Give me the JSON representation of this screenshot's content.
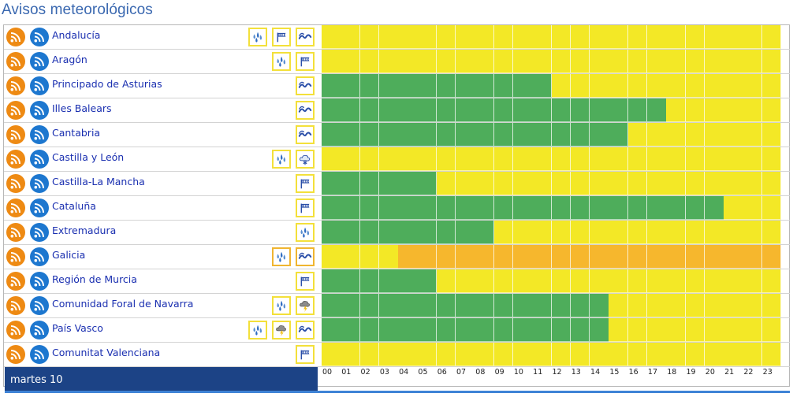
{
  "title": "Avisos meteorológicos",
  "date_label": "martes 10",
  "hours": [
    "00",
    "01",
    "02",
    "03",
    "04",
    "05",
    "06",
    "07",
    "08",
    "09",
    "10",
    "11",
    "12",
    "13",
    "14",
    "15",
    "16",
    "17",
    "18",
    "19",
    "20",
    "21",
    "22",
    "23"
  ],
  "colors": {
    "yellow": "#f3e826",
    "green": "#4ead5b",
    "orange": "#f6b72d",
    "icon_border_yellow": "#f3e03a",
    "icon_border_orange": "#f0b530"
  },
  "regions": [
    {
      "name": "Andalucía",
      "icons": [
        "rain-icon",
        "wind-icon",
        "coastal-icon"
      ],
      "levels": "yyyyyyyyyyyyyyyyyyyyyyyy"
    },
    {
      "name": "Aragón",
      "icons": [
        "rain-icon",
        "wind-icon"
      ],
      "levels": "yyyyyyyyyyyyyyyyyyyyyyyy"
    },
    {
      "name": "Principado de Asturias",
      "icons": [
        "coastal-icon"
      ],
      "levels": "ggggggggggggyyyyyyyyyyyy"
    },
    {
      "name": "Illes Balears",
      "icons": [
        "coastal-icon"
      ],
      "levels": "ggggggggggggggggggyyyyyy"
    },
    {
      "name": "Cantabria",
      "icons": [
        "coastal-icon"
      ],
      "levels": "ggggggggggggggggyyyyyyyy"
    },
    {
      "name": "Castilla y León",
      "icons": [
        "rain-icon",
        "snow-icon"
      ],
      "levels": "yyyyyyyyyyyyyyyyyyyyyyyy"
    },
    {
      "name": "Castilla-La Mancha",
      "icons": [
        "wind-icon"
      ],
      "levels": "ggggggyyyyyyyyyyyyyyyyyy"
    },
    {
      "name": "Cataluña",
      "icons": [
        "wind-icon"
      ],
      "levels": "gggggggggggggggggggggyyy"
    },
    {
      "name": "Extremadura",
      "icons": [
        "rain-icon"
      ],
      "levels": "gggggggggyyyyyyyyyyyyyyy"
    },
    {
      "name": "Galicia",
      "icons": [
        "rain-icon",
        "coastal-icon"
      ],
      "levels": "yyyyoooooooooooooooooooo",
      "orange": true
    },
    {
      "name": "Región de Murcia",
      "icons": [
        "wind-icon"
      ],
      "levels": "ggggggyyyyyyyyyyyyyyyyyy"
    },
    {
      "name": "Comunidad Foral de Navarra",
      "icons": [
        "rain-icon",
        "storm-icon"
      ],
      "levels": "gggggggggggggggyyyyyyyyy"
    },
    {
      "name": "País Vasco",
      "icons": [
        "rain-icon",
        "storm-icon",
        "coastal-icon"
      ],
      "levels": "gggggggggggggggyyyyyyyyy"
    },
    {
      "name": "Comunitat Valenciana",
      "icons": [
        "wind-icon"
      ],
      "levels": "yyyyyyyyyyyyyyyyyyyyyyyy"
    }
  ]
}
